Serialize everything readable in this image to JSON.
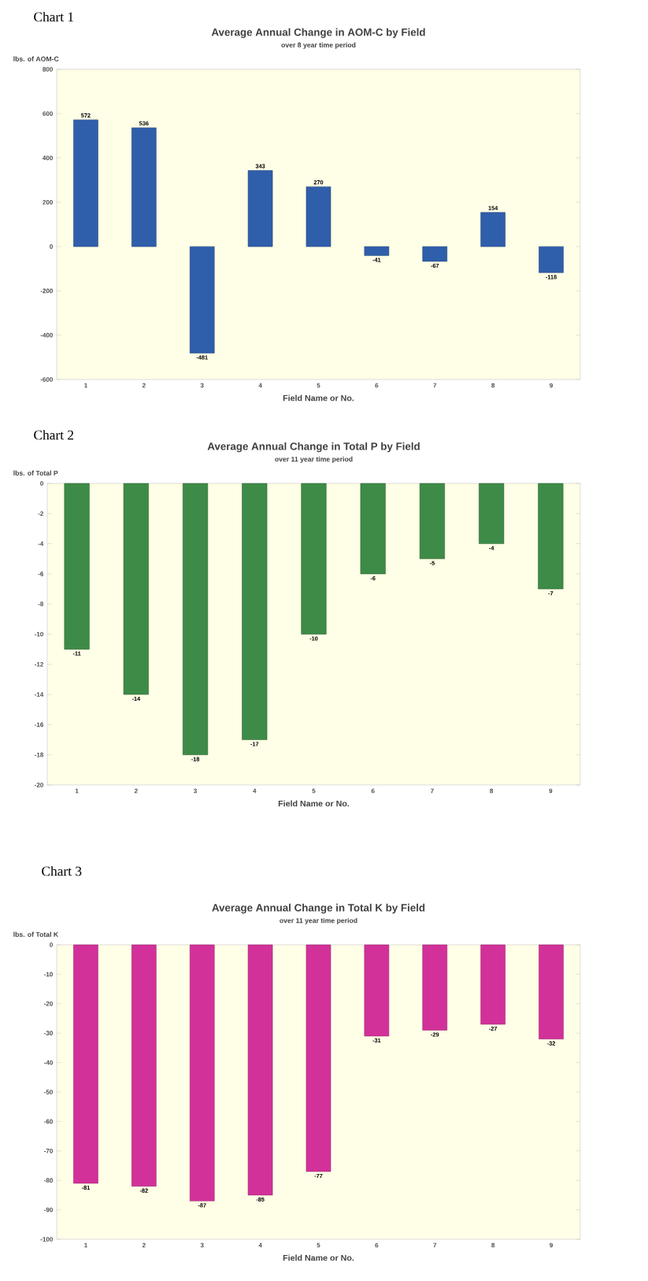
{
  "chart_data": [
    {
      "type": "bar",
      "title": "Average Annual Change in AOM-C by Field",
      "subtitle": "over 8 year time period",
      "ylabel": "lbs. of AOM-C",
      "xlabel": "Field Name or No.",
      "annotations": [
        "Chart 1"
      ],
      "categories": [
        "1",
        "2",
        "3",
        "4",
        "5",
        "6",
        "7",
        "8",
        "9"
      ],
      "values": [
        572,
        536,
        -481,
        343,
        270,
        -41,
        -67,
        154,
        -118
      ],
      "color": "#2f5eab",
      "ylim": [
        -600,
        800
      ],
      "yticks": [
        -600,
        -400,
        -200,
        0,
        200,
        400,
        600,
        800
      ],
      "data_labels": true
    },
    {
      "type": "bar",
      "title": "Average Annual Change in Total P by Field",
      "subtitle": "over 11 year time period",
      "ylabel": "lbs. of Total P",
      "xlabel": "Field Name or No.",
      "annotations": [
        "Chart 2"
      ],
      "categories": [
        "1",
        "2",
        "3",
        "4",
        "5",
        "6",
        "7",
        "8",
        "9"
      ],
      "values": [
        -11,
        -14,
        -18,
        -17,
        -10,
        -6,
        -5,
        -4,
        -7
      ],
      "color": "#3d8b47",
      "ylim": [
        -20,
        0
      ],
      "yticks": [
        -20,
        -18,
        -16,
        -14,
        -12,
        -10,
        -8,
        -6,
        -4,
        -2,
        0
      ],
      "data_labels": true
    },
    {
      "type": "bar",
      "title": "Average Annual Change in Total K by Field",
      "subtitle": "over 11 year time period",
      "ylabel": "lbs. of Total K",
      "xlabel": "Field Name or No.",
      "annotations": [
        "Chart 3"
      ],
      "categories": [
        "1",
        "2",
        "3",
        "4",
        "5",
        "6",
        "7",
        "8",
        "9"
      ],
      "values": [
        -81,
        -82,
        -87,
        -85,
        -77,
        -31,
        -29,
        -27,
        -32
      ],
      "color": "#d2319a",
      "ylim": [
        -100,
        0
      ],
      "yticks": [
        -100,
        -90,
        -80,
        -70,
        -60,
        -50,
        -40,
        -30,
        -20,
        -10,
        0
      ],
      "data_labels": true
    }
  ]
}
